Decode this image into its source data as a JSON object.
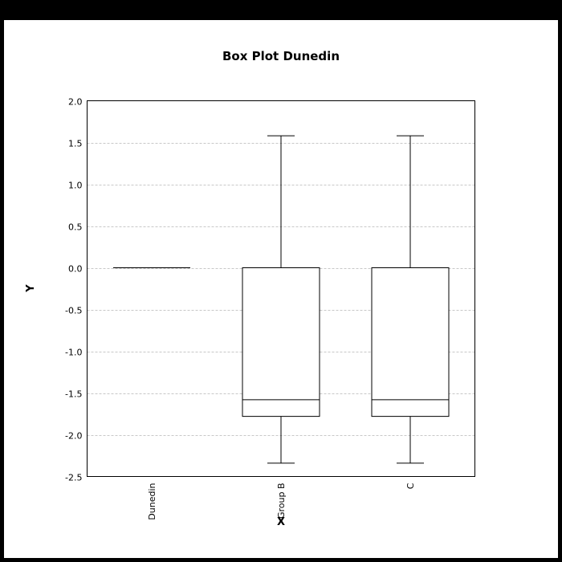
{
  "chart_data": {
    "type": "box",
    "title": "Box Plot Dunedin",
    "xlabel": "X",
    "ylabel": "Y",
    "ylim": [
      -2.5,
      2.0
    ],
    "yticks": [
      2.0,
      1.5,
      1.0,
      0.5,
      0.0,
      -0.5,
      -1.0,
      -1.5,
      -2.0,
      -2.5
    ],
    "ytick_labels": [
      "2.0",
      "1.5",
      "1.0",
      "0.5",
      "0.0",
      "-0.5",
      "-1.0",
      "-1.5",
      "-2.0",
      "-2.5"
    ],
    "grid": true,
    "categories": [
      "Dunedin",
      "Group B",
      "C"
    ],
    "boxes": [
      {
        "category": "Dunedin",
        "whisker_low": 0.0,
        "q1": 0.0,
        "median": 0.0,
        "q3": 0.0,
        "whisker_high": 0.0
      },
      {
        "category": "Group B",
        "whisker_low": -2.34,
        "q1": -1.78,
        "median": -1.58,
        "q3": 0.0,
        "whisker_high": 1.58
      },
      {
        "category": "C",
        "whisker_low": -2.34,
        "q1": -1.78,
        "median": -1.58,
        "q3": 0.0,
        "whisker_high": 1.58
      }
    ],
    "colors": {
      "box_stroke": "#000000",
      "box_fill": "#ffffff",
      "grid": "#c8c8c8",
      "background": "#ffffff",
      "frame": "#000000"
    }
  }
}
